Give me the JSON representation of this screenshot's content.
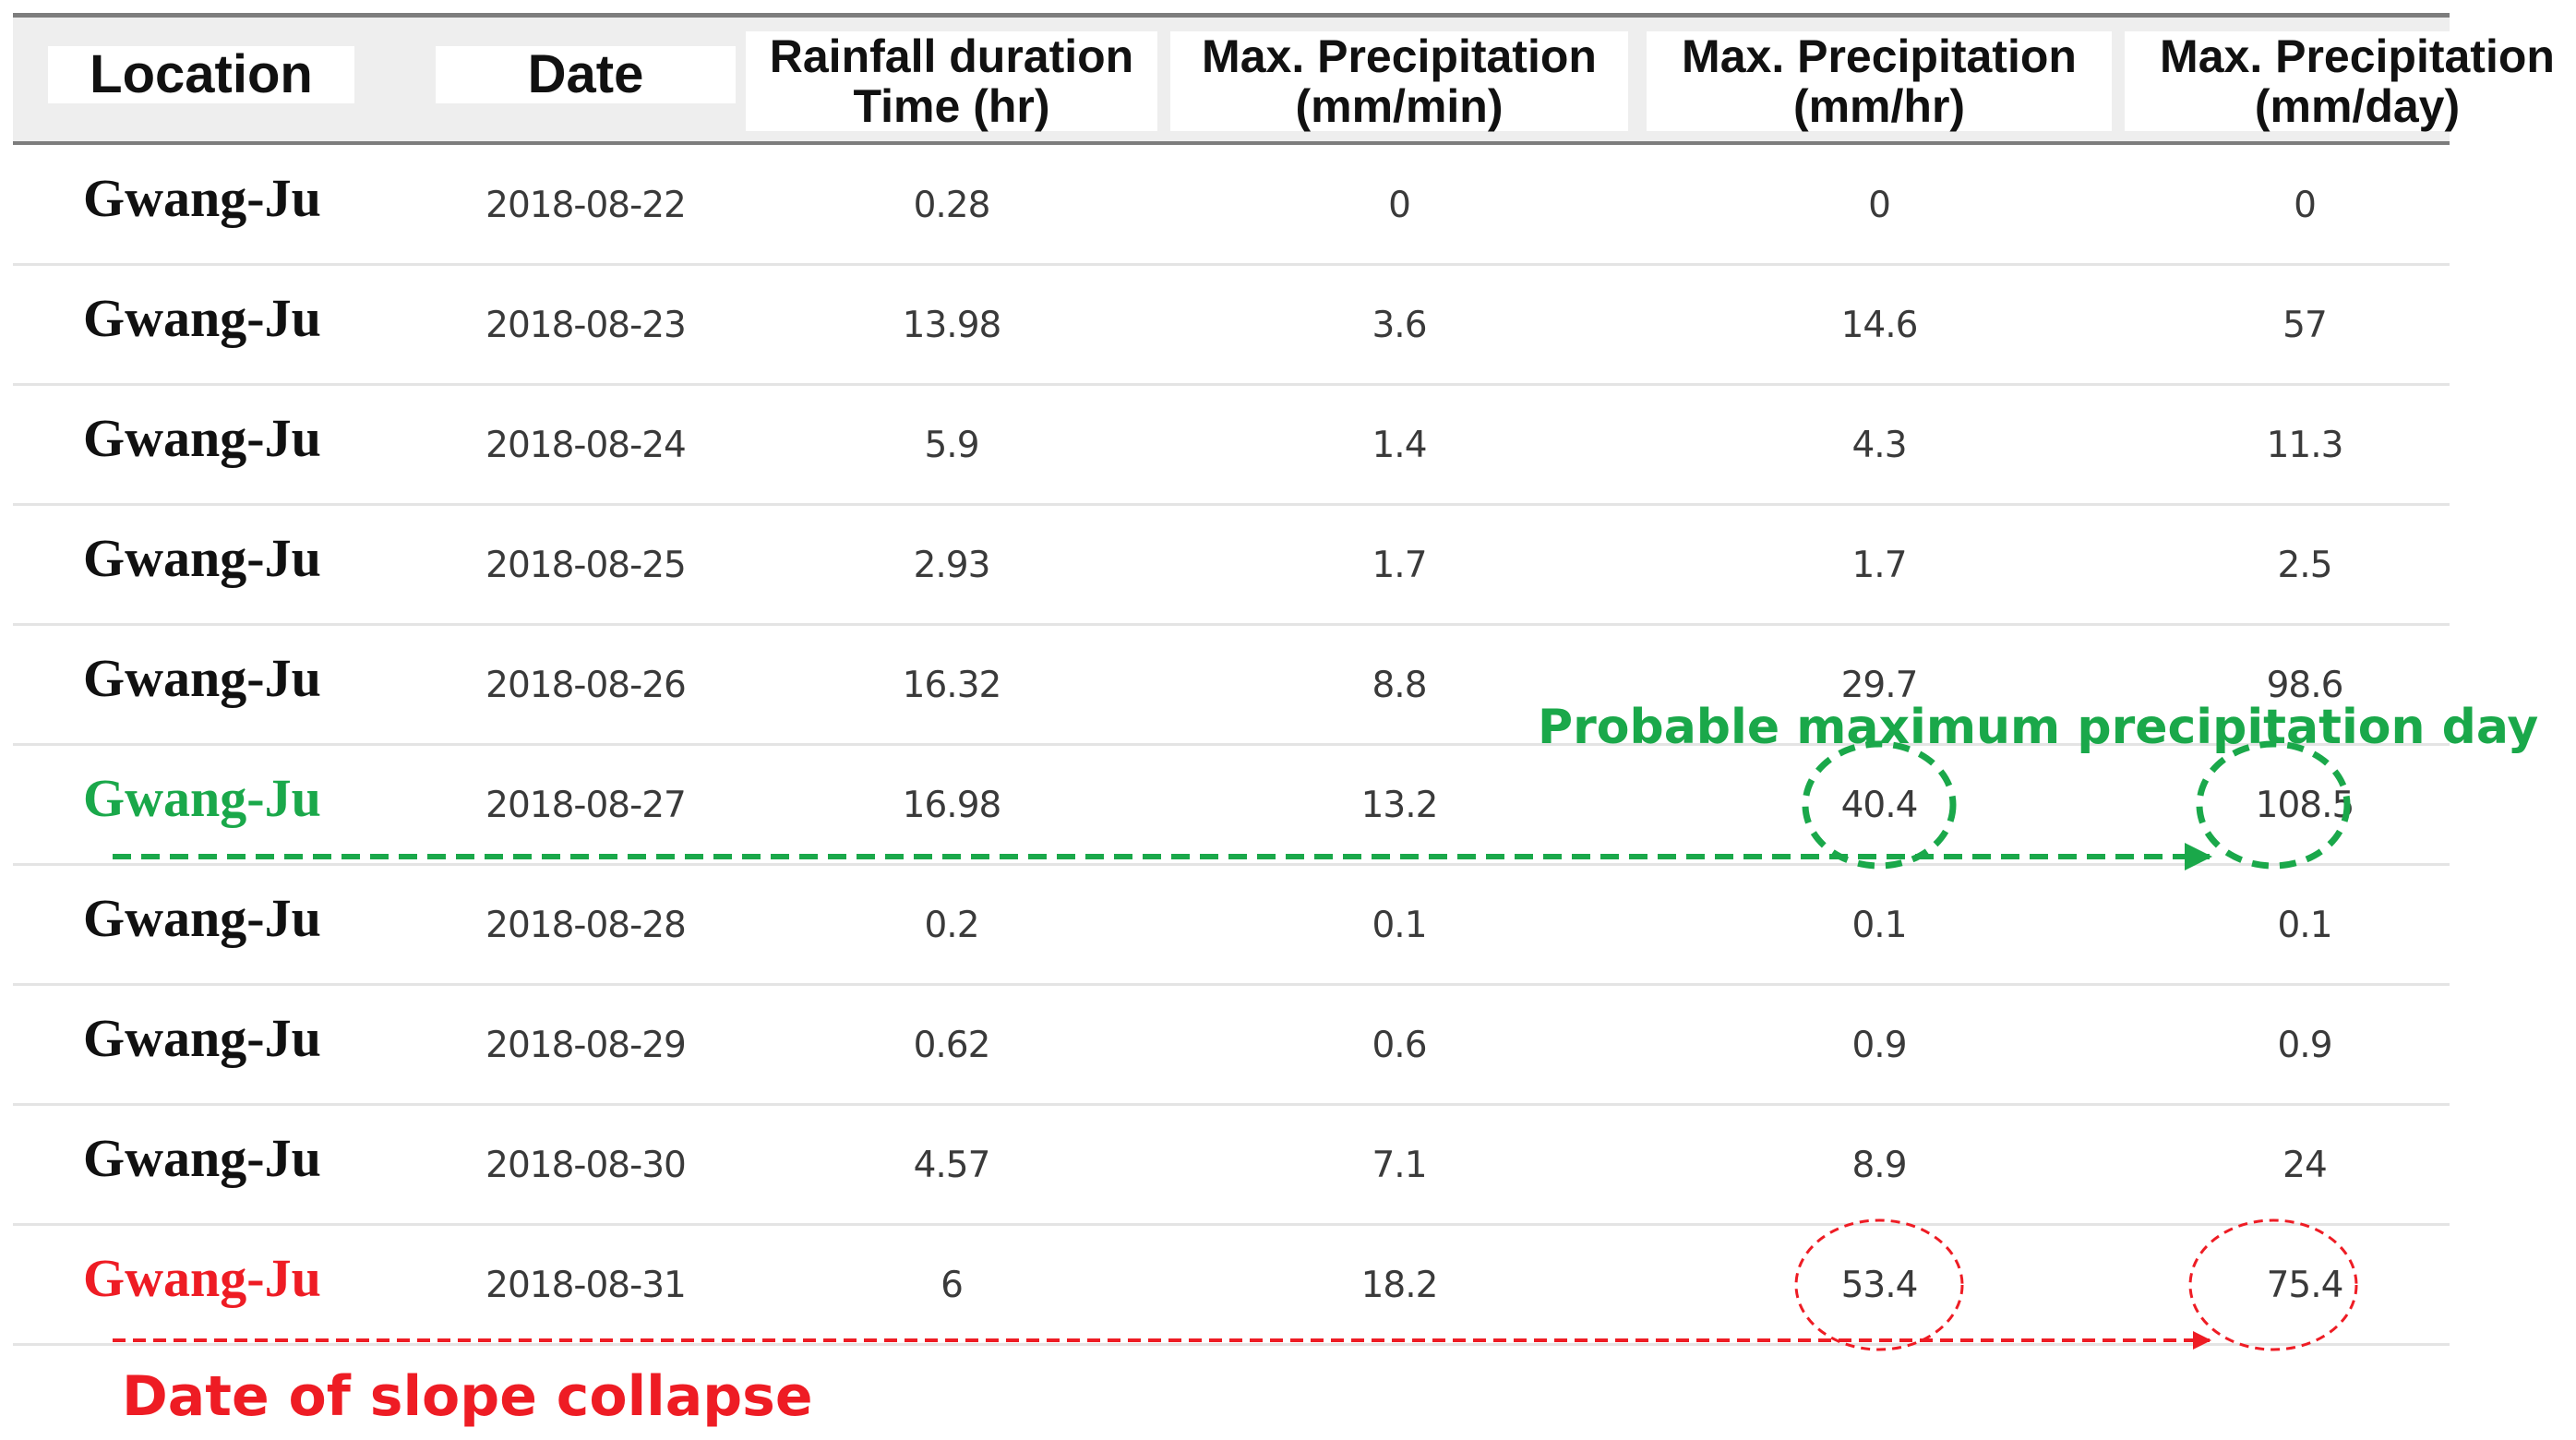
{
  "chart_data": {
    "type": "table",
    "columns": [
      "Location",
      "Date",
      "Rainfall duration\nTime (hr)",
      "Max. Precipitation\n(mm/min)",
      "Max. Precipitation\n(mm/hr)",
      "Max. Precipitation\n(mm/day)"
    ],
    "rows": [
      {
        "location": "Gwang-Ju",
        "date": "2018-08-22",
        "duration": "0.28",
        "mm_min": "0",
        "mm_hr": "0",
        "mm_day": "0",
        "highlight": "none"
      },
      {
        "location": "Gwang-Ju",
        "date": "2018-08-23",
        "duration": "13.98",
        "mm_min": "3.6",
        "mm_hr": "14.6",
        "mm_day": "57",
        "highlight": "none"
      },
      {
        "location": "Gwang-Ju",
        "date": "2018-08-24",
        "duration": "5.9",
        "mm_min": "1.4",
        "mm_hr": "4.3",
        "mm_day": "11.3",
        "highlight": "none"
      },
      {
        "location": "Gwang-Ju",
        "date": "2018-08-25",
        "duration": "2.93",
        "mm_min": "1.7",
        "mm_hr": "1.7",
        "mm_day": "2.5",
        "highlight": "none"
      },
      {
        "location": "Gwang-Ju",
        "date": "2018-08-26",
        "duration": "16.32",
        "mm_min": "8.8",
        "mm_hr": "29.7",
        "mm_day": "98.6",
        "highlight": "none"
      },
      {
        "location": "Gwang-Ju",
        "date": "2018-08-27",
        "duration": "16.98",
        "mm_min": "13.2",
        "mm_hr": "40.4",
        "mm_day": "108.5",
        "highlight": "green"
      },
      {
        "location": "Gwang-Ju",
        "date": "2018-08-28",
        "duration": "0.2",
        "mm_min": "0.1",
        "mm_hr": "0.1",
        "mm_day": "0.1",
        "highlight": "none"
      },
      {
        "location": "Gwang-Ju",
        "date": "2018-08-29",
        "duration": "0.62",
        "mm_min": "0.6",
        "mm_hr": "0.9",
        "mm_day": "0.9",
        "highlight": "none"
      },
      {
        "location": "Gwang-Ju",
        "date": "2018-08-30",
        "duration": "4.57",
        "mm_min": "7.1",
        "mm_hr": "8.9",
        "mm_day": "24",
        "highlight": "none"
      },
      {
        "location": "Gwang-Ju",
        "date": "2018-08-31",
        "duration": "6",
        "mm_min": "18.2",
        "mm_hr": "53.4",
        "mm_day": "75.4",
        "highlight": "red"
      }
    ],
    "annotations": [
      {
        "text": "Probable maximum precipitation day",
        "color": "#1aa84a",
        "row_date": "2018-08-27",
        "circled": [
          "mm_hr",
          "mm_day"
        ]
      },
      {
        "text": "Date of slope collapse",
        "color": "#ee1c24",
        "row_date": "2018-08-31",
        "circled": [
          "mm_hr",
          "mm_day"
        ]
      }
    ]
  },
  "colors": {
    "green": "#1aa84a",
    "red": "#ee1c24",
    "header_background": "#eeeeee",
    "rule": "#7d7d7d",
    "row_rule": "#e4e4e4",
    "body_text": "#3a3a3a"
  }
}
